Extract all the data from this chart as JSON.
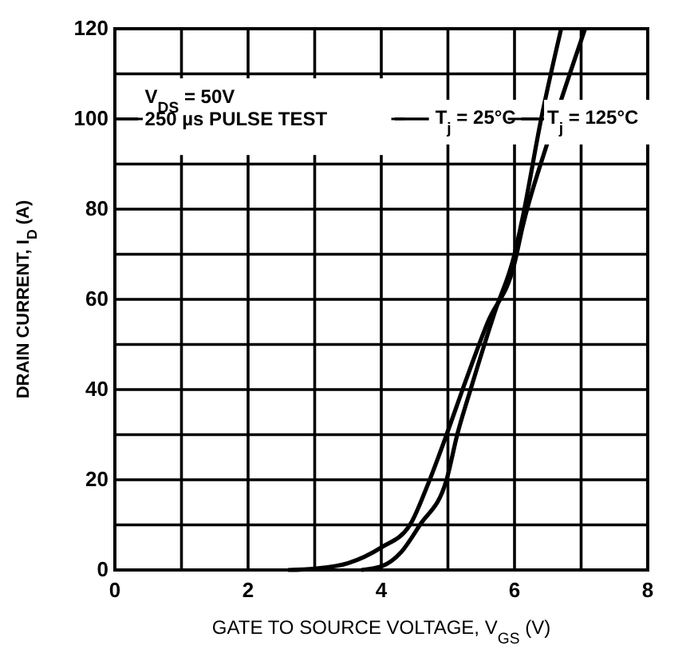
{
  "chart_data": {
    "type": "line",
    "xlabel": "GATE TO SOURCE VOLTAGE, V$_{GS}$ (V)",
    "ylabel": "DRAIN CURRENT, I$_{D}$ (A)",
    "annotations": [
      "V$_{DS}$ = 50V",
      "250 µs PULSE TEST"
    ],
    "xlim": [
      0,
      8
    ],
    "ylim": [
      0,
      120
    ],
    "xticks": [
      0,
      {
        "value": 1,
        "label": null
      },
      2,
      {
        "value": 3,
        "label": null
      },
      4,
      {
        "value": 5,
        "label": null
      },
      6,
      {
        "value": 7,
        "label": null
      },
      8
    ],
    "yticks": [
      0,
      {
        "value": 10,
        "label": null
      },
      20,
      {
        "value": 30,
        "label": null
      },
      40,
      {
        "value": 50,
        "label": null
      },
      60,
      {
        "value": 70,
        "label": null
      },
      80,
      {
        "value": 90,
        "label": null
      },
      100,
      {
        "value": 110,
        "label": null
      },
      120
    ],
    "grid": true,
    "legend": "top right",
    "marker": "none",
    "line_style": "solid",
    "series": [
      {
        "name": "T$_{j}$ = 25°C",
        "color": "#000000",
        "x": [
          3.7,
          4,
          4.3,
          4.58,
          4.98,
          5.14,
          5.34,
          5.7,
          6.0,
          6.12,
          6.4,
          6.7
        ],
        "values": [
          0,
          0.8,
          4,
          10,
          20,
          30,
          40,
          57,
          70,
          78,
          100,
          120
        ]
      },
      {
        "name": "T$_{j}$ = 125°C",
        "color": "#000000",
        "x": [
          2.6,
          3,
          3.5,
          4,
          4.43,
          4.7,
          4.98,
          5.22,
          5.6,
          6.0,
          6.12,
          6.5,
          7.06
        ],
        "values": [
          0,
          0.3,
          1.5,
          5,
          10,
          19,
          30,
          40,
          55,
          68,
          76,
          95,
          120
        ]
      }
    ]
  }
}
